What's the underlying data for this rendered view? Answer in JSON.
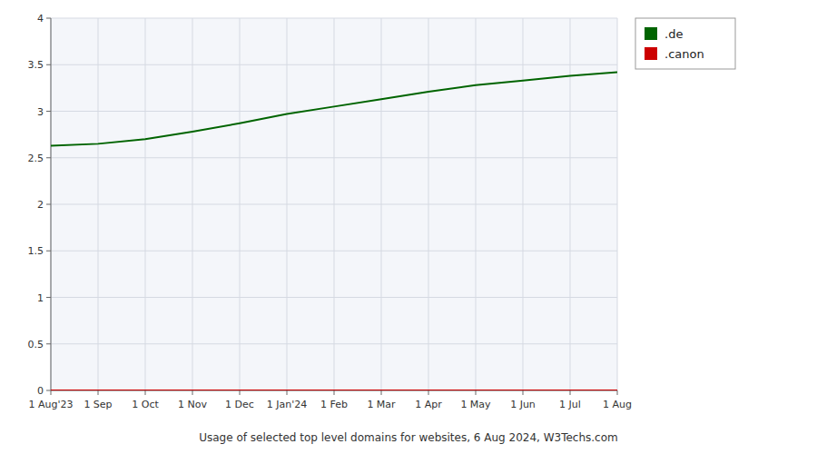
{
  "chart_data": {
    "type": "line",
    "footer": "Usage of selected top level domains for websites, 6 Aug 2024, W3Techs.com",
    "categories": [
      "1 Aug'23",
      "1 Sep",
      "1 Oct",
      "1 Nov",
      "1 Dec",
      "1 Jan'24",
      "1 Feb",
      "1 Mar",
      "1 Apr",
      "1 May",
      "1 Jun",
      "1 Jul",
      "1 Aug"
    ],
    "series": [
      {
        "name": ".de",
        "color": "#006400",
        "values": [
          2.63,
          2.65,
          2.7,
          2.78,
          2.87,
          2.97,
          3.05,
          3.13,
          3.21,
          3.28,
          3.33,
          3.38,
          3.42
        ]
      },
      {
        "name": ".canon",
        "color": "#cc0000",
        "values": [
          0.0,
          0.0,
          0.0,
          0.0,
          0.0,
          0.0,
          0.0,
          0.0,
          0.0,
          0.0,
          0.0,
          0.0,
          0.0
        ]
      }
    ],
    "ylim": [
      0,
      4
    ],
    "yticks": [
      0,
      0.5,
      1,
      1.5,
      2,
      2.5,
      3,
      3.5,
      4
    ],
    "grid": true,
    "legend": "upper right"
  }
}
